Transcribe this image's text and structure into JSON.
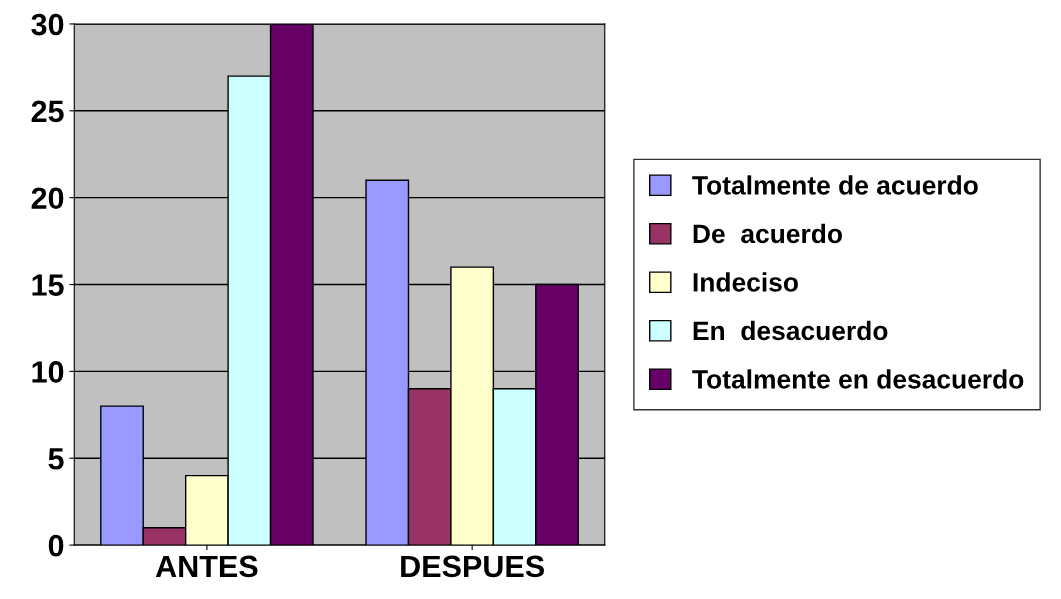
{
  "chart_data": {
    "type": "bar",
    "categories": [
      "ANTES",
      "DESPUES"
    ],
    "series": [
      {
        "name": "Totalmente de acuerdo",
        "color": "#9999ff",
        "values": [
          8,
          21
        ]
      },
      {
        "name": "De  acuerdo",
        "color": "#993366",
        "values": [
          1,
          9
        ]
      },
      {
        "name": "Indeciso",
        "color": "#ffffcc",
        "values": [
          4,
          16
        ]
      },
      {
        "name": "En  desacuerdo",
        "color": "#ccffff",
        "values": [
          27,
          9
        ]
      },
      {
        "name": "Totalmente en desacuerdo",
        "color": "#660066",
        "values": [
          30,
          15
        ]
      }
    ],
    "ylim": [
      0,
      30
    ],
    "yticks": [
      0,
      5,
      10,
      15,
      20,
      25,
      30
    ],
    "grid": "y",
    "legend": "right"
  }
}
